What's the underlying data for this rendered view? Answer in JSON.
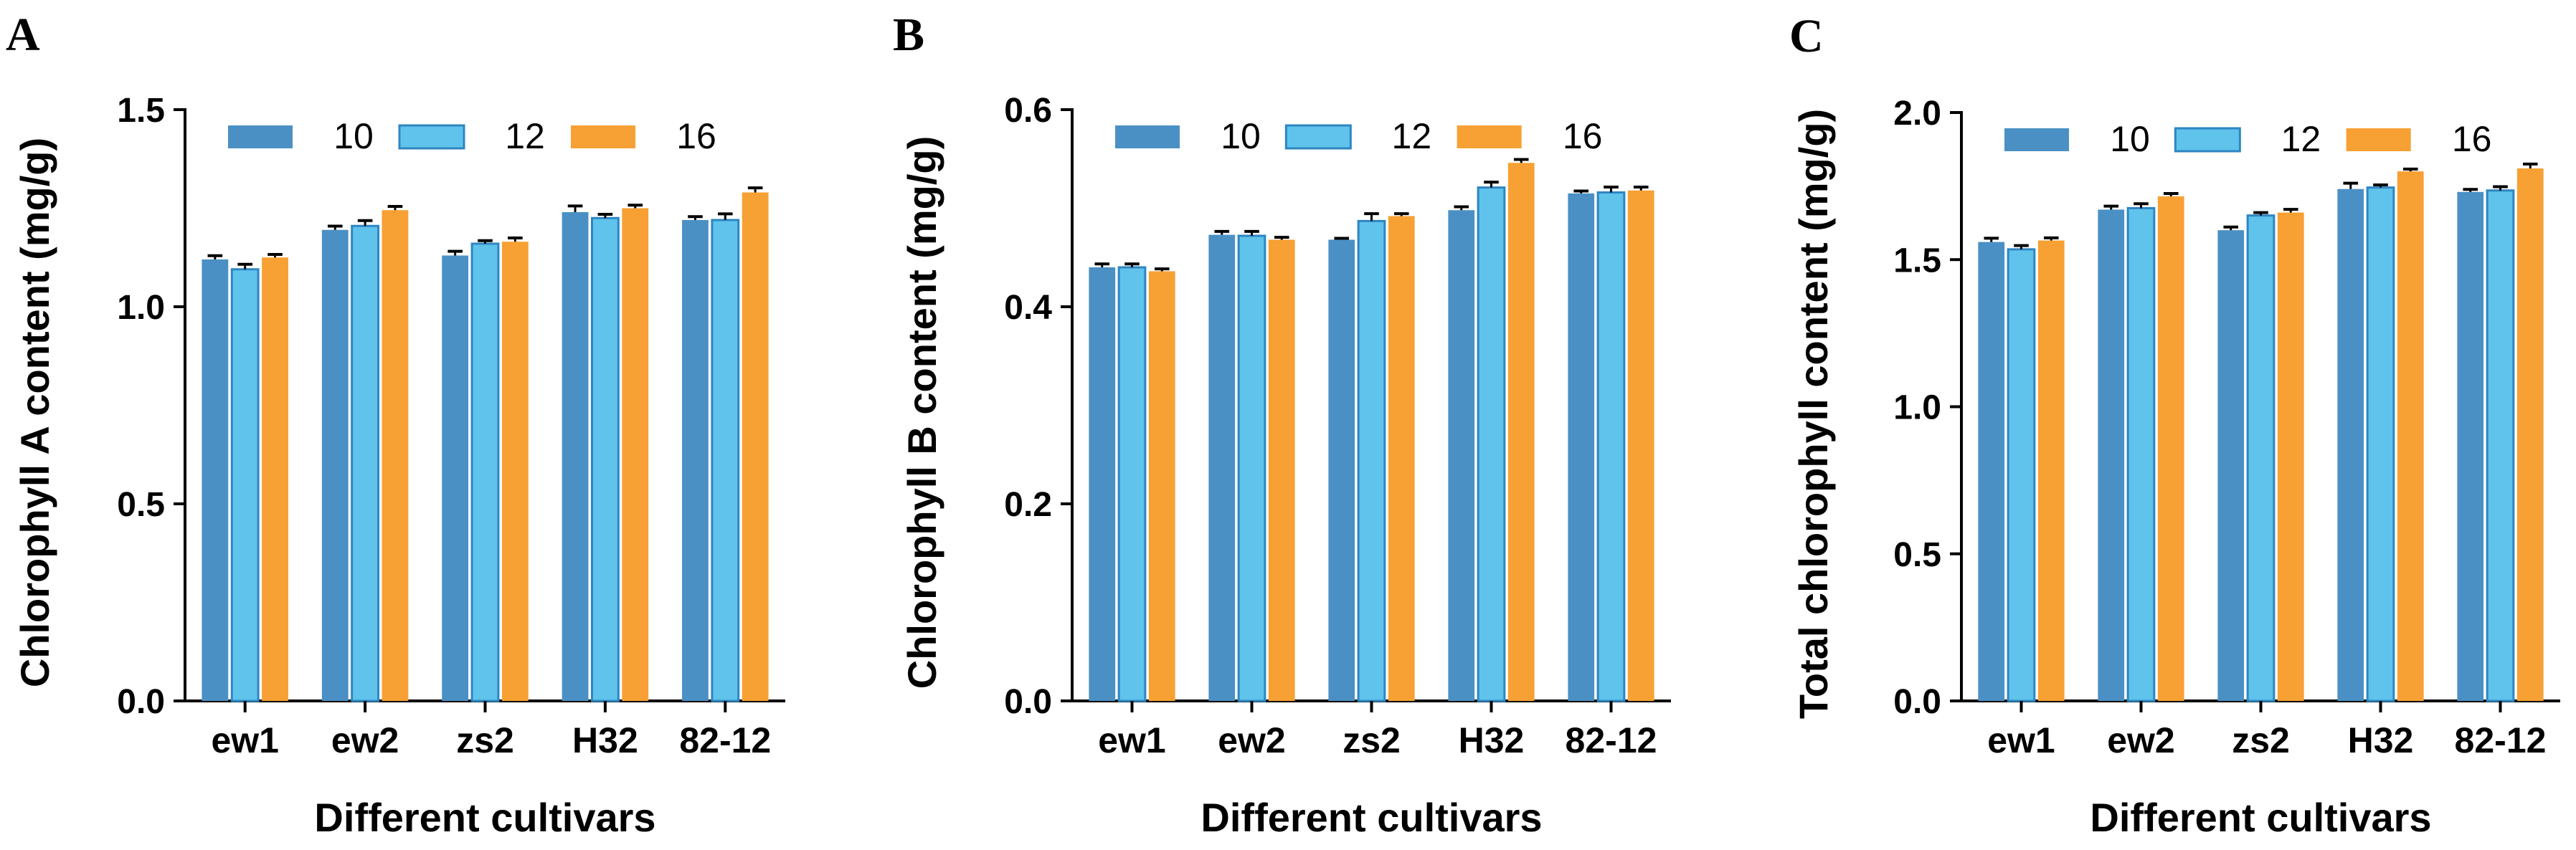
{
  "colors": {
    "s10": "#4A90C4",
    "s12": "#5FC3EC",
    "s16": "#F7A033",
    "axis": "#000000"
  },
  "chart_data": [
    {
      "panel": "A",
      "type": "bar",
      "title": "",
      "xlabel": "Different cultivars",
      "ylabel": "Chlorophyll A content (mg/g)",
      "categories": [
        "ew1",
        "ew2",
        "zs2",
        "H32",
        "82-12"
      ],
      "ylim": [
        0,
        1.5
      ],
      "yticks": [
        "0.0",
        "0.5",
        "1.0",
        "1.5"
      ],
      "legend_position": "top",
      "series": [
        {
          "name": "10",
          "values": [
            1.12,
            1.195,
            1.13,
            1.24,
            1.22
          ],
          "errors": [
            0.006,
            0.006,
            0.007,
            0.012,
            0.005
          ]
        },
        {
          "name": "12",
          "values": [
            1.095,
            1.205,
            1.16,
            1.225,
            1.22
          ],
          "errors": [
            0.009,
            0.01,
            0.004,
            0.006,
            0.012
          ]
        },
        {
          "name": "16",
          "values": [
            1.125,
            1.245,
            1.165,
            1.25,
            1.29
          ],
          "errors": [
            0.004,
            0.006,
            0.006,
            0.004,
            0.008
          ]
        }
      ]
    },
    {
      "panel": "B",
      "type": "bar",
      "title": "",
      "xlabel": "Different cultivars",
      "ylabel": "Chlorophyll B content (mg/g)",
      "categories": [
        "ew1",
        "ew2",
        "zs2",
        "H32",
        "82-12"
      ],
      "ylim": [
        0,
        0.6
      ],
      "yticks": [
        "0.0",
        "0.2",
        "0.4",
        "0.6"
      ],
      "legend_position": "top",
      "series": [
        {
          "name": "10",
          "values": [
            0.44,
            0.473,
            0.468,
            0.498,
            0.515
          ],
          "errors": [
            0.002,
            0.002,
            0.0,
            0.002,
            0.001
          ]
        },
        {
          "name": "12",
          "values": [
            0.44,
            0.472,
            0.487,
            0.521,
            0.516
          ],
          "errors": [
            0.002,
            0.003,
            0.006,
            0.004,
            0.004
          ]
        },
        {
          "name": "16",
          "values": [
            0.436,
            0.468,
            0.492,
            0.546,
            0.518
          ],
          "errors": [
            0.001,
            0.001,
            0.001,
            0.002,
            0.002
          ]
        }
      ]
    },
    {
      "panel": "C",
      "type": "bar",
      "title": "",
      "xlabel": "Different cultivars",
      "ylabel": "Total chlorophyll content (mg/g)",
      "categories": [
        "ew1",
        "ew2",
        "zs2",
        "H32",
        "82-12"
      ],
      "ylim": [
        0,
        2.0
      ],
      "yticks": [
        "0.0",
        "0.5",
        "1.0",
        "1.5",
        "2.0"
      ],
      "legend_position": "top",
      "series": [
        {
          "name": "10",
          "values": [
            1.56,
            1.67,
            1.6,
            1.74,
            1.73
          ],
          "errors": [
            0.008,
            0.007,
            0.006,
            0.015,
            0.004
          ]
        },
        {
          "name": "12",
          "values": [
            1.535,
            1.675,
            1.65,
            1.745,
            1.735
          ],
          "errors": [
            0.008,
            0.01,
            0.005,
            0.004,
            0.008
          ]
        },
        {
          "name": "16",
          "values": [
            1.565,
            1.715,
            1.66,
            1.8,
            1.81
          ],
          "errors": [
            0.004,
            0.005,
            0.006,
            0.003,
            0.01
          ]
        }
      ]
    }
  ]
}
